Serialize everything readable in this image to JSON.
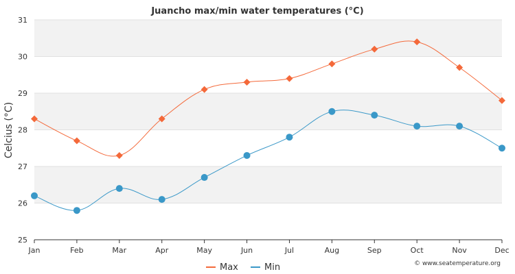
{
  "chart_data": {
    "type": "line",
    "title": "Juancho max/min water temperatures (°C)",
    "xlabel": "",
    "ylabel": "Celcius (°C)",
    "categories": [
      "Jan",
      "Feb",
      "Mar",
      "Apr",
      "May",
      "Jun",
      "Jul",
      "Aug",
      "Sep",
      "Oct",
      "Nov",
      "Dec"
    ],
    "ylim": [
      25,
      31
    ],
    "yticks": [
      "25",
      "26",
      "27",
      "28",
      "29",
      "30",
      "31"
    ],
    "series": [
      {
        "name": "Max",
        "color": "#f4693a",
        "marker": "diamond",
        "values": [
          28.3,
          27.7,
          27.3,
          28.3,
          29.1,
          29.3,
          29.4,
          29.8,
          30.2,
          30.4,
          29.7,
          28.8
        ]
      },
      {
        "name": "Min",
        "color": "#3a98c8",
        "marker": "circle",
        "values": [
          26.2,
          25.8,
          26.4,
          26.1,
          26.7,
          27.3,
          27.8,
          28.5,
          28.4,
          28.1,
          28.1,
          27.5
        ]
      }
    ],
    "legend": {
      "position": "bottom-center",
      "items": [
        "Max",
        "Min"
      ]
    },
    "credit": "© www.seatemperature.org"
  }
}
